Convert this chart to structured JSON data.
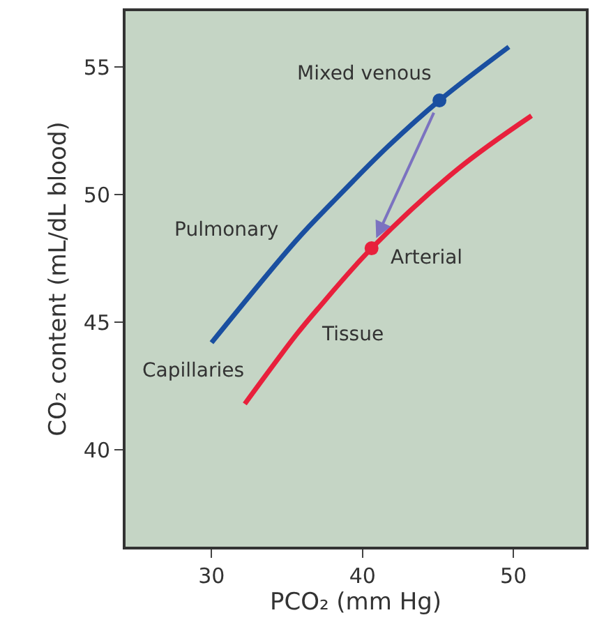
{
  "chart_data": {
    "type": "line",
    "xlabel": "PCO₂ (mm Hg)",
    "ylabel": "CO₂ content (mL/dL blood)",
    "xlim": [
      24.3,
      54.8
    ],
    "xticks": [
      30,
      40,
      50
    ],
    "ylim": [
      36.2,
      57.2
    ],
    "yticks": [
      40,
      45,
      50,
      55
    ],
    "grid": false,
    "marker": "none",
    "line_style": "solid",
    "series": [
      {
        "color": "#1a4fa0",
        "x": [
          30,
          35.6,
          38,
          41.7,
          45.1,
          49.7
        ],
        "values": [
          44.2,
          48.2,
          49.7,
          51.9,
          53.7,
          55.8
        ]
      },
      {
        "color": "#e8203c",
        "x": [
          32.2,
          35.6,
          37,
          40.6,
          46.3,
          51.2
        ],
        "values": [
          41.8,
          44.5,
          45.5,
          47.9,
          51.0,
          53.1
        ]
      },
      {
        "type": "scatter",
        "marker": "circle",
        "color": "#1a4fa0",
        "x": [
          45.1
        ],
        "values": [
          53.7
        ]
      },
      {
        "type": "scatter",
        "marker": "circle",
        "color": "#e8203c",
        "x": [
          40.6
        ],
        "values": [
          47.9
        ]
      }
    ],
    "annotations": [
      {
        "text": "Mixed venous",
        "x": 45.1,
        "y": 53.7
      },
      {
        "text": "Pulmonary",
        "x": 35.6,
        "y": 48.2
      },
      {
        "text": "Arterial",
        "x": 40.6,
        "y": 47.9
      },
      {
        "text": "Tissue",
        "x": 35.6,
        "y": 44.5
      },
      {
        "text": "Capillaries",
        "x": 30,
        "y": 44.2
      }
    ]
  }
}
